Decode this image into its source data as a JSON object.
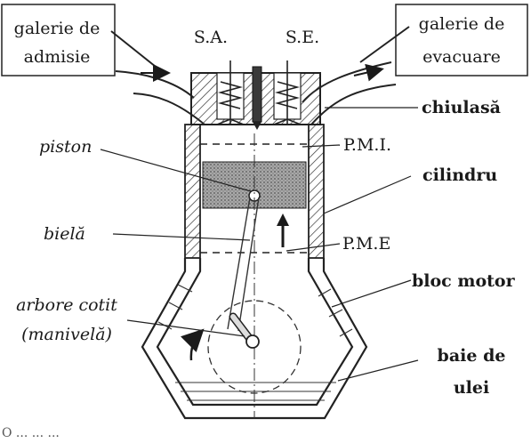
{
  "labels": {
    "intake_gallery": [
      "galerie de",
      "admisie"
    ],
    "exhaust_gallery": [
      "galerie de",
      "evacuare"
    ],
    "intake_valve": "S.A.",
    "exhaust_valve": "S.E.",
    "cylinder_head": "chiulasă",
    "piston": "piston",
    "tdc": "P.M.I.",
    "cylinder": "cilindru",
    "connecting_rod": "bielă",
    "bdc": "P.M.E",
    "engine_block": "bloc motor",
    "crankshaft": [
      "arbore cotit",
      "(manivelă)"
    ],
    "oil_sump": [
      "baie de",
      "ulei"
    ],
    "caption_fragment": "O  ...  ...  ..."
  },
  "colors": {
    "ink": "#1a1a1a",
    "piston_fill": "#9a9a9a",
    "hatch": "#333333",
    "background": "#ffffff"
  }
}
